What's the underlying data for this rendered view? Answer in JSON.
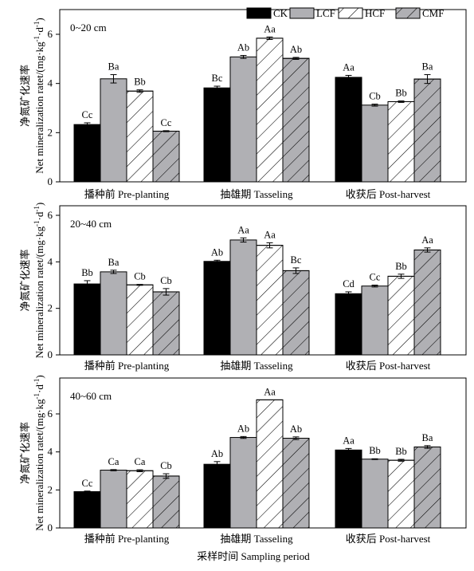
{
  "figure": {
    "ylabel_cn": "净氮矿化速率",
    "ylabel_en_prefix": "Net mineralization ratet/(mg·kg",
    "ylabel_en_mid": "·d",
    "ylabel_en_suffix": ")",
    "ylabel_sup": "-1",
    "xlabel": "采样时间 Sampling period"
  },
  "legend": [
    {
      "name": "CK",
      "fill": "#000000",
      "hatch": false
    },
    {
      "name": "LCF",
      "fill": "#b0b0b4",
      "hatch": false
    },
    {
      "name": "HCF",
      "fill": "#ffffff",
      "hatch": true
    },
    {
      "name": "CMF",
      "fill": "#b0b0b4",
      "hatch": true
    }
  ],
  "chart_data": [
    {
      "type": "bar",
      "panel_label": "0~20 cm",
      "categories": [
        "播种前 Pre-planting",
        "抽雄期 Tasseling",
        "收获后 Post-harvest"
      ],
      "ylim": [
        0,
        7
      ],
      "yticks": [
        0,
        2,
        4,
        6
      ],
      "series": [
        {
          "name": "CK",
          "values": [
            2.33,
            3.82,
            4.25
          ],
          "errors": [
            0.07,
            0.07,
            0.08
          ],
          "labels": [
            "Cc",
            "Bc",
            "Aa"
          ]
        },
        {
          "name": "LCF",
          "values": [
            4.19,
            5.08,
            3.12
          ],
          "errors": [
            0.17,
            0.06,
            0.04
          ],
          "labels": [
            "Ba",
            "Ab",
            "Cb"
          ]
        },
        {
          "name": "HCF",
          "values": [
            3.69,
            5.84,
            3.26
          ],
          "errors": [
            0.05,
            0.05,
            0.03
          ],
          "labels": [
            "Bb",
            "Aa",
            "Bb"
          ]
        },
        {
          "name": "CMF",
          "values": [
            2.06,
            5.02,
            4.18
          ],
          "errors": [
            0.02,
            0.04,
            0.18
          ],
          "labels": [
            "Cc",
            "Ab",
            "Ba"
          ]
        }
      ]
    },
    {
      "type": "bar",
      "panel_label": "20~40 cm",
      "categories": [
        "播种前 Pre-planting",
        "抽雄期 Tasseling",
        "收获后 Post-harvest"
      ],
      "ylim": [
        0,
        6
      ],
      "yticks": [
        0,
        2,
        4,
        6
      ],
      "series": [
        {
          "name": "CK",
          "values": [
            3.05,
            4.02,
            2.63
          ],
          "errors": [
            0.14,
            0.05,
            0.08
          ],
          "labels": [
            "Bb",
            "Ab",
            "Cd"
          ]
        },
        {
          "name": "LCF",
          "values": [
            3.57,
            4.94,
            2.96
          ],
          "errors": [
            0.07,
            0.09,
            0.04
          ],
          "labels": [
            "Ba",
            "Aa",
            "Cc"
          ]
        },
        {
          "name": "HCF",
          "values": [
            3.01,
            4.71,
            3.38
          ],
          "errors": [
            0.02,
            0.11,
            0.09
          ],
          "labels": [
            "Cb",
            "Aa",
            "Bb"
          ]
        },
        {
          "name": "CMF",
          "values": [
            2.71,
            3.62,
            4.51
          ],
          "errors": [
            0.14,
            0.12,
            0.09
          ],
          "labels": [
            "Cb",
            "Bc",
            "Aa"
          ]
        }
      ]
    },
    {
      "type": "bar",
      "panel_label": "40~60 cm",
      "categories": [
        "播种前 Pre-planting",
        "抽雄期 Tasseling",
        "收获后 Post-harvest"
      ],
      "ylim": [
        0,
        7
      ],
      "yticks": [
        0,
        2,
        4,
        6
      ],
      "series": [
        {
          "name": "CK",
          "values": [
            1.91,
            3.35,
            4.1
          ],
          "errors": [
            0.03,
            0.14,
            0.08
          ],
          "labels": [
            "Cc",
            "Ab",
            "Aa"
          ]
        },
        {
          "name": "LCF",
          "values": [
            3.04,
            4.76,
            3.62
          ],
          "errors": [
            0.03,
            0.05,
            0.02
          ],
          "labels": [
            "Ca",
            "Ab",
            "Bb"
          ]
        },
        {
          "name": "HCF",
          "values": [
            3.01,
            6.74,
            3.56
          ],
          "errors": [
            0.05,
            0.0,
            0.05
          ],
          "labels": [
            "Ca",
            "Aa",
            "Bb"
          ]
        },
        {
          "name": "CMF",
          "values": [
            2.73,
            4.72,
            4.26
          ],
          "errors": [
            0.12,
            0.07,
            0.07
          ],
          "labels": [
            "Cb",
            "Ab",
            "Ba"
          ]
        }
      ]
    }
  ]
}
